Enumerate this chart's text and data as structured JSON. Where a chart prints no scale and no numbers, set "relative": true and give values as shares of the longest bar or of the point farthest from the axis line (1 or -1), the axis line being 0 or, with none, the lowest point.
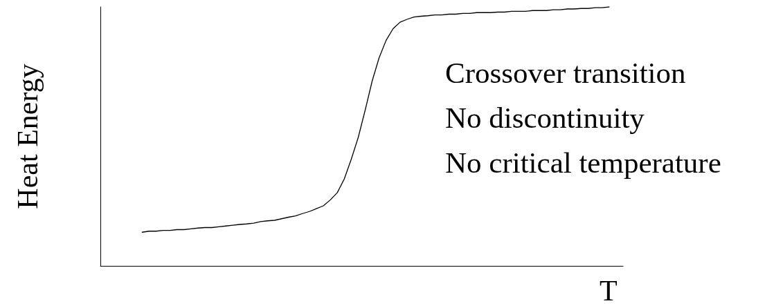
{
  "chart_data": {
    "type": "line",
    "relative": true,
    "xlabel": "T",
    "ylabel": "Heat Energy",
    "marker": "none",
    "line_style": "solid",
    "annotations": [
      "Crossover transition",
      "No discontinuity",
      "No critical temperature"
    ],
    "categories": [
      null,
      null,
      null,
      null,
      null,
      null,
      null,
      null,
      null,
      null,
      null,
      null,
      null,
      null,
      null,
      null,
      null,
      null,
      null,
      null,
      null,
      null,
      null,
      null,
      null,
      null,
      null,
      null,
      null,
      null,
      null,
      null,
      null,
      null,
      null,
      null,
      null,
      null,
      null,
      null,
      null,
      null,
      null,
      null,
      null,
      null,
      null,
      null,
      null,
      null,
      null,
      null,
      null,
      null,
      null,
      null,
      null,
      null,
      null,
      null,
      null,
      null,
      null,
      null,
      null,
      null,
      null,
      null,
      null,
      null,
      null,
      null,
      null,
      null,
      null,
      null
    ],
    "series": [
      {
        "color": "#000000",
        "values": [
          null,
          null,
          null,
          null,
          null,
          null,
          0.13,
          0.134,
          0.134,
          0.137,
          0.137,
          0.14,
          0.14,
          0.143,
          0.146,
          0.148,
          0.148,
          0.151,
          0.154,
          0.157,
          0.16,
          0.162,
          0.165,
          0.171,
          0.174,
          0.176,
          0.182,
          0.188,
          0.193,
          0.202,
          0.21,
          0.221,
          0.232,
          0.255,
          0.283,
          0.336,
          0.412,
          0.496,
          0.602,
          0.714,
          0.804,
          0.871,
          0.916,
          0.941,
          0.952,
          0.961,
          0.964,
          0.966,
          0.969,
          0.969,
          0.972,
          0.972,
          0.975,
          0.975,
          0.978,
          0.978,
          0.978,
          0.98,
          0.98,
          0.983,
          0.983,
          0.983,
          0.986,
          0.986,
          0.986,
          0.989,
          0.989,
          0.992,
          0.992,
          0.994,
          0.994,
          0.997,
          0.997,
          1,
          null,
          null
        ]
      }
    ]
  }
}
